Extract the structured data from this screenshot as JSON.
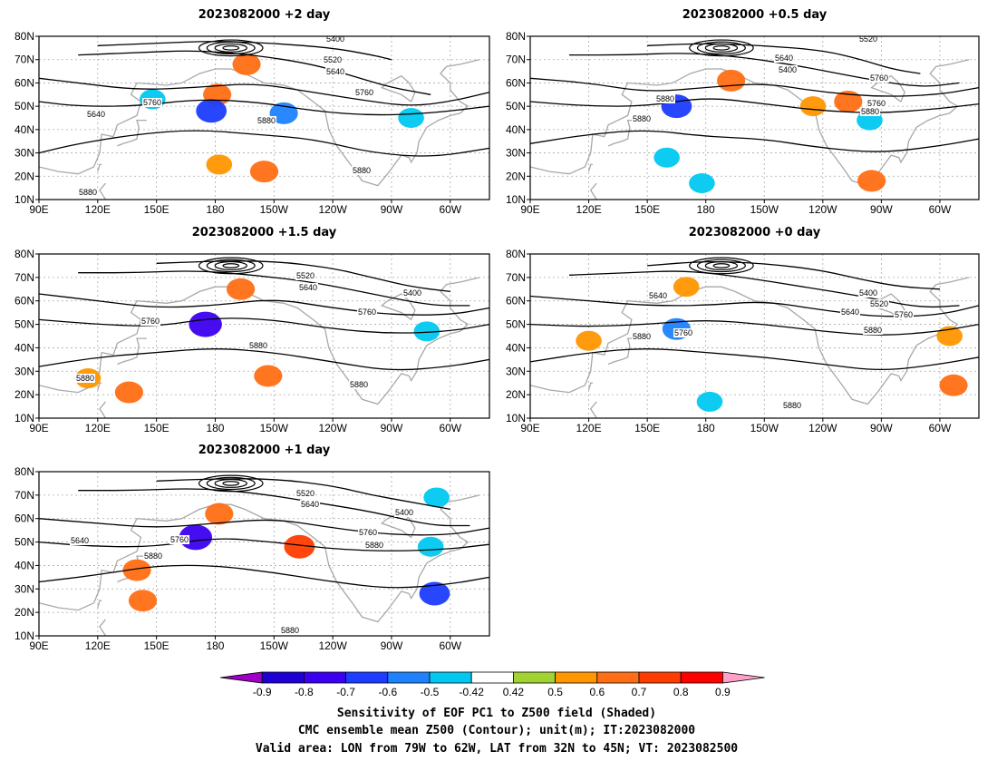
{
  "chart_data": [
    {
      "type": "contour",
      "title": "2023082000 +2 day",
      "xticks": [
        "90E",
        "120E",
        "150E",
        "180",
        "150W",
        "120W",
        "90W",
        "60W"
      ],
      "yticks": [
        "10N",
        "20N",
        "30N",
        "40N",
        "50N",
        "60N",
        "70N",
        "80N"
      ],
      "xlim": [
        90,
        320
      ],
      "ylim": [
        10,
        80
      ],
      "contour_labels": [
        "5400",
        "5520",
        "5640",
        "5760",
        "5640",
        "5760",
        "5880",
        "5880",
        "5880"
      ],
      "contours": [
        {
          "level": 5400,
          "lon": [
            120,
            150,
            180,
            210,
            240,
            260,
            270
          ],
          "lat": [
            76,
            77,
            78,
            77,
            75,
            72,
            70
          ]
        },
        {
          "level": 5520,
          "lon": [
            110,
            140,
            170,
            200,
            230,
            250,
            270,
            290
          ],
          "lat": [
            72,
            73,
            74,
            72,
            68,
            63,
            58,
            55
          ]
        },
        {
          "level": 5640,
          "lon": [
            90,
            110,
            140,
            170,
            200,
            230,
            260,
            280,
            300,
            320
          ],
          "lat": [
            62,
            60,
            57,
            58,
            60,
            56,
            52,
            50,
            52,
            56
          ]
        },
        {
          "level": 5760,
          "lon": [
            90,
            110,
            140,
            170,
            200,
            230,
            260,
            290,
            320
          ],
          "lat": [
            52,
            50,
            50,
            53,
            52,
            48,
            46,
            47,
            50
          ]
        },
        {
          "level": 5880,
          "lon": [
            90,
            110,
            140,
            170,
            200,
            230,
            260,
            290,
            320
          ],
          "lat": [
            30,
            34,
            38,
            40,
            38,
            36,
            30,
            28,
            32
          ]
        }
      ],
      "shading": [
        {
          "value": 0.6,
          "lon": 181,
          "lat": 55
        },
        {
          "value": -0.7,
          "lon": 178,
          "lat": 48
        },
        {
          "value": -0.6,
          "lon": 215,
          "lat": 47
        },
        {
          "value": 0.5,
          "lon": 182,
          "lat": 25
        },
        {
          "value": 0.6,
          "lon": 205,
          "lat": 22
        },
        {
          "value": -0.5,
          "lon": 280,
          "lat": 45
        },
        {
          "value": -0.5,
          "lon": 148,
          "lat": 53
        },
        {
          "value": 0.6,
          "lon": 196,
          "lat": 68
        }
      ]
    },
    {
      "type": "contour",
      "title": "2023082000 +0.5 day",
      "xticks": [
        "90E",
        "120E",
        "150E",
        "180",
        "150W",
        "120W",
        "90W",
        "60W"
      ],
      "yticks": [
        "10N",
        "20N",
        "30N",
        "40N",
        "50N",
        "60N",
        "70N",
        "80N"
      ],
      "xlim": [
        90,
        320
      ],
      "ylim": [
        10,
        80
      ],
      "contour_labels": [
        "5520",
        "5640",
        "5400",
        "5760",
        "5880",
        "5760",
        "5880",
        "5880"
      ],
      "contours": [
        {
          "level": 5400,
          "lon": [
            150,
            180,
            210,
            240,
            260,
            275,
            290
          ],
          "lat": [
            76,
            77,
            76,
            74,
            70,
            66,
            64
          ]
        },
        {
          "level": 5520,
          "lon": [
            110,
            140,
            170,
            200,
            230,
            260,
            290,
            310
          ],
          "lat": [
            72,
            72,
            73,
            71,
            67,
            62,
            58,
            60
          ]
        },
        {
          "level": 5640,
          "lon": [
            90,
            120,
            150,
            180,
            210,
            240,
            270,
            300,
            320
          ],
          "lat": [
            62,
            60,
            56,
            58,
            60,
            56,
            54,
            55,
            58
          ]
        },
        {
          "level": 5760,
          "lon": [
            90,
            120,
            150,
            180,
            210,
            240,
            270,
            300,
            320
          ],
          "lat": [
            52,
            50,
            50,
            54,
            51,
            48,
            47,
            49,
            51
          ]
        },
        {
          "level": 5880,
          "lon": [
            90,
            120,
            150,
            180,
            210,
            240,
            270,
            300,
            320
          ],
          "lat": [
            34,
            38,
            40,
            37,
            36,
            32,
            30,
            33,
            36
          ]
        }
      ],
      "shading": [
        {
          "value": -0.7,
          "lon": 165,
          "lat": 50
        },
        {
          "value": 0.6,
          "lon": 193,
          "lat": 61
        },
        {
          "value": -0.5,
          "lon": 178,
          "lat": 17
        },
        {
          "value": -0.5,
          "lon": 160,
          "lat": 28
        },
        {
          "value": 0.5,
          "lon": 235,
          "lat": 50
        },
        {
          "value": 0.6,
          "lon": 253,
          "lat": 52
        },
        {
          "value": -0.5,
          "lon": 264,
          "lat": 44
        },
        {
          "value": 0.6,
          "lon": 265,
          "lat": 18
        }
      ]
    },
    {
      "type": "contour",
      "title": "2023082000 +1.5 day",
      "xticks": [
        "90E",
        "120E",
        "150E",
        "180",
        "150W",
        "120W",
        "90W",
        "60W"
      ],
      "yticks": [
        "10N",
        "20N",
        "30N",
        "40N",
        "50N",
        "60N",
        "70N",
        "80N"
      ],
      "xlim": [
        90,
        320
      ],
      "ylim": [
        10,
        80
      ],
      "contour_labels": [
        "5520",
        "5640",
        "5400",
        "5760",
        "5760",
        "5880",
        "5880",
        "5880"
      ],
      "contours": [
        {
          "level": 5400,
          "lon": [
            150,
            180,
            210,
            240,
            260,
            280,
            300
          ],
          "lat": [
            76,
            77,
            77,
            74,
            70,
            66,
            64
          ]
        },
        {
          "level": 5520,
          "lon": [
            110,
            140,
            170,
            200,
            230,
            260,
            290,
            310
          ],
          "lat": [
            72,
            72,
            73,
            71,
            68,
            63,
            58,
            58
          ]
        },
        {
          "level": 5640,
          "lon": [
            90,
            120,
            150,
            180,
            210,
            240,
            270,
            300,
            320
          ],
          "lat": [
            63,
            60,
            57,
            58,
            61,
            57,
            54,
            54,
            57
          ]
        },
        {
          "level": 5760,
          "lon": [
            90,
            120,
            150,
            180,
            210,
            240,
            270,
            300,
            320
          ],
          "lat": [
            52,
            50,
            49,
            53,
            52,
            48,
            46,
            47,
            50
          ]
        },
        {
          "level": 5880,
          "lon": [
            90,
            120,
            150,
            180,
            210,
            240,
            270,
            300,
            320
          ],
          "lat": [
            32,
            36,
            38,
            40,
            38,
            34,
            30,
            32,
            35
          ]
        }
      ],
      "shading": [
        {
          "value": -0.8,
          "lon": 175,
          "lat": 50
        },
        {
          "value": 0.6,
          "lon": 193,
          "lat": 65
        },
        {
          "value": 0.6,
          "lon": 207,
          "lat": 28
        },
        {
          "value": 0.5,
          "lon": 115,
          "lat": 27
        },
        {
          "value": -0.5,
          "lon": 288,
          "lat": 47
        },
        {
          "value": 0.6,
          "lon": 136,
          "lat": 21
        }
      ]
    },
    {
      "type": "contour",
      "title": "2023082000 +0 day",
      "xticks": [
        "90E",
        "120E",
        "150E",
        "180",
        "150W",
        "120W",
        "90W",
        "60W"
      ],
      "yticks": [
        "10N",
        "20N",
        "30N",
        "40N",
        "50N",
        "60N",
        "70N",
        "80N"
      ],
      "xlim": [
        90,
        320
      ],
      "ylim": [
        10,
        80
      ],
      "contour_labels": [
        "5640",
        "5400",
        "5520",
        "5640",
        "5760",
        "5760",
        "5880",
        "5880",
        "5880"
      ],
      "contours": [
        {
          "level": 5400,
          "lon": [
            150,
            180,
            210,
            240,
            260,
            280,
            300
          ],
          "lat": [
            75,
            77,
            76,
            73,
            69,
            66,
            65
          ]
        },
        {
          "level": 5520,
          "lon": [
            110,
            140,
            170,
            200,
            230,
            260,
            290,
            310
          ],
          "lat": [
            71,
            72,
            73,
            70,
            66,
            62,
            57,
            58
          ]
        },
        {
          "level": 5640,
          "lon": [
            90,
            120,
            150,
            180,
            210,
            240,
            270,
            300,
            320
          ],
          "lat": [
            62,
            60,
            58,
            58,
            60,
            56,
            53,
            54,
            58
          ]
        },
        {
          "level": 5760,
          "lon": [
            90,
            120,
            150,
            180,
            210,
            240,
            270,
            300,
            320
          ],
          "lat": [
            50,
            49,
            50,
            52,
            50,
            47,
            45,
            47,
            50
          ]
        },
        {
          "level": 5880,
          "lon": [
            90,
            120,
            150,
            180,
            210,
            240,
            270,
            300,
            320
          ],
          "lat": [
            34,
            38,
            40,
            38,
            36,
            33,
            30,
            33,
            36
          ]
        }
      ],
      "shading": [
        {
          "value": -0.6,
          "lon": 165,
          "lat": 48
        },
        {
          "value": 0.5,
          "lon": 170,
          "lat": 66
        },
        {
          "value": -0.5,
          "lon": 182,
          "lat": 17
        },
        {
          "value": 0.5,
          "lon": 305,
          "lat": 45
        },
        {
          "value": 0.6,
          "lon": 307,
          "lat": 24
        },
        {
          "value": 0.5,
          "lon": 120,
          "lat": 43
        }
      ]
    },
    {
      "type": "contour",
      "title": "2023082000 +1 day",
      "xticks": [
        "90E",
        "120E",
        "150E",
        "180",
        "150W",
        "120W",
        "90W",
        "60W"
      ],
      "yticks": [
        "10N",
        "20N",
        "30N",
        "40N",
        "50N",
        "60N",
        "70N",
        "80N"
      ],
      "xlim": [
        90,
        320
      ],
      "ylim": [
        10,
        80
      ],
      "contour_labels": [
        "5520",
        "5640",
        "5400",
        "5640",
        "5760",
        "5760",
        "5880",
        "5880",
        "5880"
      ],
      "contours": [
        {
          "level": 5400,
          "lon": [
            150,
            180,
            210,
            240,
            260,
            280,
            300
          ],
          "lat": [
            76,
            77,
            77,
            74,
            70,
            67,
            64
          ]
        },
        {
          "level": 5520,
          "lon": [
            110,
            140,
            170,
            200,
            230,
            260,
            290,
            310
          ],
          "lat": [
            72,
            72,
            73,
            71,
            67,
            63,
            57,
            57
          ]
        },
        {
          "level": 5640,
          "lon": [
            90,
            120,
            150,
            180,
            210,
            240,
            270,
            300,
            320
          ],
          "lat": [
            60,
            58,
            56,
            58,
            60,
            56,
            53,
            53,
            56
          ]
        },
        {
          "level": 5760,
          "lon": [
            90,
            120,
            150,
            180,
            210,
            240,
            270,
            300,
            320
          ],
          "lat": [
            50,
            48,
            48,
            52,
            50,
            47,
            46,
            47,
            49
          ]
        },
        {
          "level": 5880,
          "lon": [
            90,
            120,
            150,
            180,
            210,
            240,
            270,
            300,
            320
          ],
          "lat": [
            33,
            36,
            40,
            40,
            37,
            33,
            30,
            32,
            35
          ]
        }
      ],
      "shading": [
        {
          "value": -0.8,
          "lon": 170,
          "lat": 52
        },
        {
          "value": 0.6,
          "lon": 182,
          "lat": 62
        },
        {
          "value": 0.7,
          "lon": 223,
          "lat": 48
        },
        {
          "value": 0.6,
          "lon": 140,
          "lat": 38
        },
        {
          "value": 0.6,
          "lon": 143,
          "lat": 25
        },
        {
          "value": -0.7,
          "lon": 292,
          "lat": 28
        },
        {
          "value": -0.5,
          "lon": 290,
          "lat": 48
        },
        {
          "value": -0.5,
          "lon": 293,
          "lat": 69
        }
      ]
    }
  ],
  "colorbar": {
    "labels": [
      "-0.9",
      "-0.8",
      "-0.7",
      "-0.6",
      "-0.5",
      "-0.42",
      "0.42",
      "0.5",
      "0.6",
      "0.7",
      "0.8",
      "0.9"
    ],
    "colors": [
      "#a000c8",
      "#1e00d2",
      "#3c00f0",
      "#1e3cff",
      "#1e82ff",
      "#00c8f0",
      "#ffffff",
      "#a0d232",
      "#ff9600",
      "#ff6e14",
      "#ff3c00",
      "#ff0000",
      "#ffa0c8"
    ]
  },
  "caption": {
    "line1": "Sensitivity of EOF PC1 to Z500 field (Shaded)",
    "line2": "CMC ensemble mean Z500 (Contour); unit(m); IT:2023082000",
    "line3": "Valid area: LON from 79W to 62W, LAT from 32N to 45N; VT: 2023082500"
  }
}
